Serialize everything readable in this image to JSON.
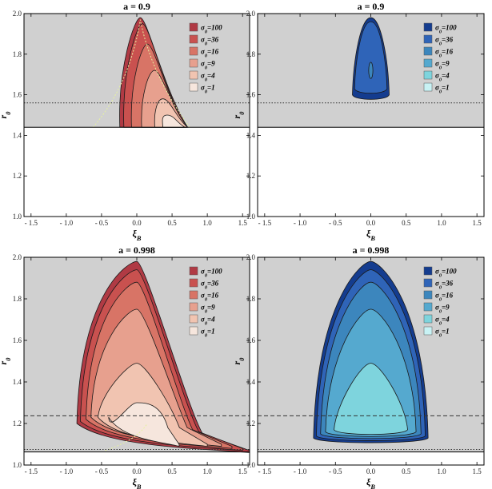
{
  "chart_data": [
    {
      "type": "contour",
      "title": "a = 0.9",
      "xlabel": "ξ_B",
      "ylabel": "r_0",
      "xlim": [
        -1.6,
        1.6
      ],
      "ylim": [
        1.0,
        2.0
      ],
      "xticks": [
        "- 1.5",
        "- 1.0",
        "- 0.5",
        "0.0",
        "0.5",
        "1.0",
        "1.5"
      ],
      "yticks": [
        "1.0",
        "1.2",
        "1.4",
        "1.6",
        "1.8",
        "2.0"
      ],
      "legend_position": "top-right",
      "colors": [
        "#b03a44",
        "#c9514f",
        "#d87466",
        "#e7a08e",
        "#f1c4b1",
        "#f6e6dd"
      ],
      "series": [
        {
          "name": "σ_0=100",
          "sigma0": 100,
          "center": 0.1,
          "bottom_r": 1.44,
          "top_r": 1.98,
          "half_width": 0.62
        },
        {
          "name": "σ_0=36",
          "sigma0": 36,
          "center": 0.13,
          "bottom_r": 1.44,
          "top_r": 1.95,
          "half_width": 0.57
        },
        {
          "name": "σ_0=16",
          "sigma0": 16,
          "center": 0.2,
          "bottom_r": 1.44,
          "top_r": 1.85,
          "half_width": 0.5
        },
        {
          "name": "σ_0=9",
          "sigma0": 9,
          "center": 0.3,
          "bottom_r": 1.44,
          "top_r": 1.72,
          "half_width": 0.42
        },
        {
          "name": "σ_0=4",
          "sigma0": 4,
          "center": 0.42,
          "bottom_r": 1.44,
          "top_r": 1.58,
          "half_width": 0.3
        },
        {
          "name": "σ_0=1",
          "sigma0": 1,
          "center": 0.48,
          "bottom_r": 1.44,
          "top_r": 1.5,
          "half_width": 0.2
        }
      ],
      "horizon_r": 1.44,
      "dotted_line_r": 1.56,
      "dashed_line_r": null
    },
    {
      "type": "contour",
      "title": "a = 0.9",
      "xlabel": "ξ_B",
      "ylabel": "r_0",
      "xlim": [
        -1.6,
        1.6
      ],
      "ylim": [
        1.0,
        2.0
      ],
      "xticks": [
        "- 1.5",
        "- 1.0",
        "- 0.5",
        "0.0",
        "0.5",
        "1.0",
        "1.5"
      ],
      "yticks": [
        "1.0",
        "1.2",
        "1.4",
        "1.6",
        "1.8",
        "2.0"
      ],
      "legend_position": "top-right",
      "colors": [
        "#143c8f",
        "#2f64b8",
        "#3c86bd",
        "#55a9cf",
        "#7ed4dd",
        "#c8f2f4"
      ],
      "series": [
        {
          "name": "σ_0=100",
          "sigma0": 100,
          "center": 0.0,
          "bottom_r": 1.57,
          "top_r": 1.98,
          "half_width": 0.26
        },
        {
          "name": "σ_0=36",
          "sigma0": 36,
          "center": 0.0,
          "bottom_r": 1.6,
          "top_r": 1.96,
          "half_width": 0.23
        },
        {
          "name": "σ_0=16",
          "sigma0": 16,
          "center": 0.0,
          "bottom_r": 1.7,
          "top_r": 1.74,
          "half_width": 0.03
        },
        {
          "name": "σ_0=9",
          "sigma0": 9,
          "center": null
        },
        {
          "name": "σ_0=4",
          "sigma0": 4,
          "center": null
        },
        {
          "name": "σ_0=1",
          "sigma0": 1,
          "center": null
        }
      ],
      "horizon_r": 1.44,
      "dotted_line_r": 1.56,
      "dashed_line_r": null
    },
    {
      "type": "contour",
      "title": "a = 0.998",
      "xlabel": "ξ_B",
      "ylabel": "r_0",
      "xlim": [
        -1.6,
        1.6
      ],
      "ylim": [
        1.0,
        2.0
      ],
      "xticks": [
        "- 1.5",
        "- 1.0",
        "- 0.5",
        "0.0",
        "0.5",
        "1.0",
        "1.5"
      ],
      "yticks": [
        "1.0",
        "1.2",
        "1.4",
        "1.6",
        "1.8",
        "2.0"
      ],
      "legend_position": "top-right",
      "colors": [
        "#b03a44",
        "#c9514f",
        "#d87466",
        "#e7a08e",
        "#f1c4b1",
        "#f6e6dd"
      ],
      "series": [
        {
          "name": "σ_0=100",
          "sigma0": 100,
          "center": 0.0,
          "bottom_r": 1.07,
          "top_r": 1.98,
          "half_width": 1.6
        },
        {
          "name": "σ_0=36",
          "sigma0": 36,
          "center": 0.0,
          "bottom_r": 1.08,
          "top_r": 1.94,
          "half_width": 1.5
        },
        {
          "name": "σ_0=16",
          "sigma0": 16,
          "center": 0.0,
          "bottom_r": 1.09,
          "top_r": 1.88,
          "half_width": 1.35
        },
        {
          "name": "σ_0=9",
          "sigma0": 9,
          "center": 0.0,
          "bottom_r": 1.1,
          "top_r": 1.75,
          "half_width": 1.2
        },
        {
          "name": "σ_0=4",
          "sigma0": 4,
          "center": 0.0,
          "bottom_r": 1.1,
          "top_r": 1.49,
          "half_width": 1.0
        },
        {
          "name": "σ_0=1",
          "sigma0": 1,
          "center": 0.0,
          "bottom_r": 1.1,
          "top_r": 1.3,
          "half_width": 0.6
        }
      ],
      "horizon_r": 1.063,
      "dotted_line_r": 1.075,
      "dashed_line_r": 1.237
    },
    {
      "type": "contour",
      "title": "a = 0.998",
      "xlabel": "ξ_B",
      "ylabel": "r_0",
      "xlim": [
        -1.6,
        1.6
      ],
      "ylim": [
        1.0,
        2.0
      ],
      "xticks": [
        "- 1.5",
        "- 1.0",
        "- 0.5",
        "0.0",
        "0.5",
        "1.0",
        "1.5"
      ],
      "yticks": [
        "1.0",
        "1.2",
        "1.4",
        "1.6",
        "1.8",
        "2.0"
      ],
      "legend_position": "top-right",
      "colors": [
        "#143c8f",
        "#2f64b8",
        "#3c86bd",
        "#55a9cf",
        "#7ed4dd",
        "#c8f2f4"
      ],
      "series": [
        {
          "name": "σ_0=100",
          "sigma0": 100,
          "center": 0.0,
          "bottom_r": 1.1,
          "top_r": 1.98,
          "half_width": 0.81
        },
        {
          "name": "σ_0=36",
          "sigma0": 36,
          "center": 0.0,
          "bottom_r": 1.11,
          "top_r": 1.94,
          "half_width": 0.77
        },
        {
          "name": "σ_0=16",
          "sigma0": 16,
          "center": 0.0,
          "bottom_r": 1.12,
          "top_r": 1.88,
          "half_width": 0.71
        },
        {
          "name": "σ_0=9",
          "sigma0": 9,
          "center": 0.0,
          "bottom_r": 1.13,
          "top_r": 1.75,
          "half_width": 0.64
        },
        {
          "name": "σ_0=4",
          "sigma0": 4,
          "center": 0.0,
          "bottom_r": 1.14,
          "top_r": 1.49,
          "half_width": 0.52
        },
        {
          "name": "σ_0=1",
          "sigma0": 1,
          "center": null
        }
      ],
      "horizon_r": 1.063,
      "dotted_line_r": 1.075,
      "dashed_line_r": 1.237
    }
  ]
}
